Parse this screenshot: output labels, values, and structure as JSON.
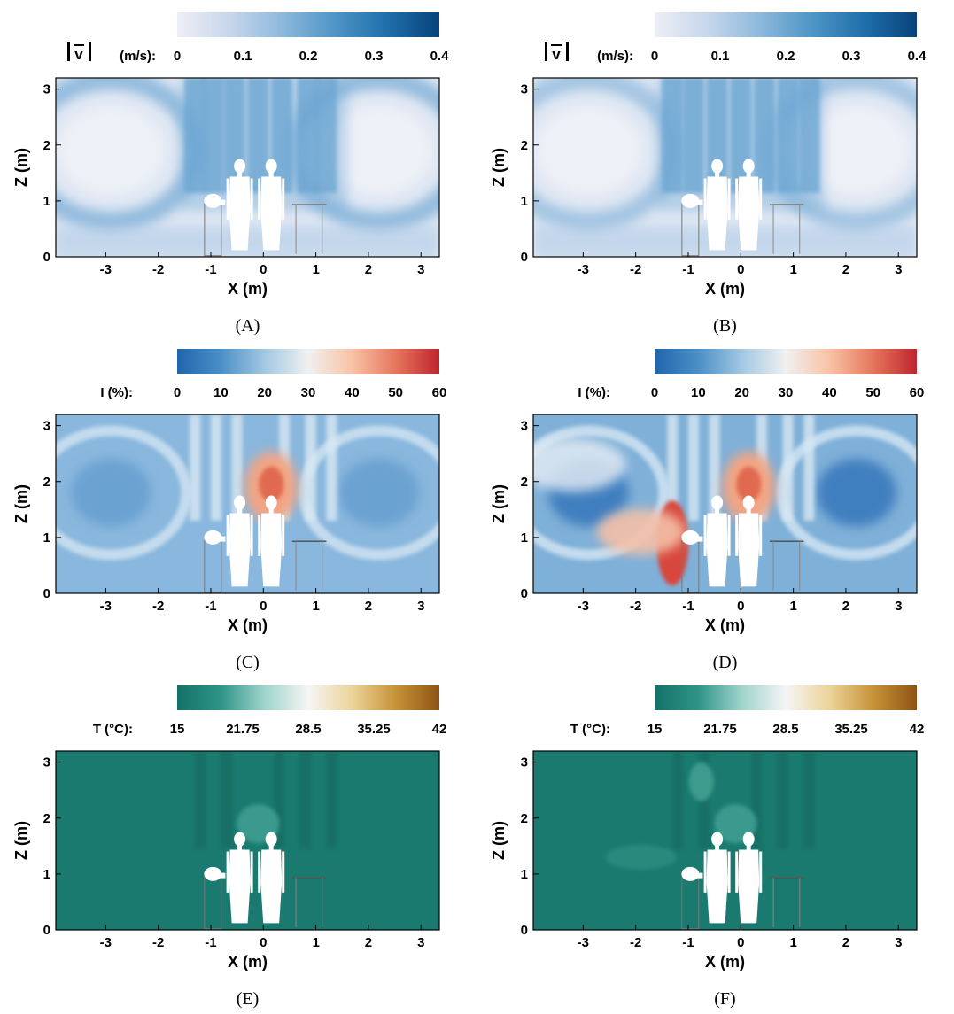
{
  "chart_data": [
    {
      "type": "heatmap",
      "caption": "(A)",
      "colormap": "velocity",
      "colorbar_label": "(m/s):",
      "colorbar_ticks": [
        "0",
        "0.1",
        "0.2",
        "0.3",
        "0.4"
      ],
      "colorbar_range": [
        0,
        0.4
      ],
      "xlabel": "X (m)",
      "ylabel": "Z (m)",
      "xticks": [
        "-3",
        "-2",
        "-1",
        "0",
        "1",
        "2",
        "3"
      ],
      "yticks": [
        "0",
        "1",
        "2",
        "3"
      ],
      "xlim": [
        -3.95,
        3.35
      ],
      "ylim": [
        0,
        3.2
      ]
    },
    {
      "type": "heatmap",
      "caption": "(B)",
      "colormap": "velocity",
      "colorbar_label": "(m/s):",
      "colorbar_ticks": [
        "0",
        "0.1",
        "0.2",
        "0.3",
        "0.4"
      ],
      "colorbar_range": [
        0,
        0.4
      ],
      "xlabel": "X (m)",
      "ylabel": "Z (m)",
      "xticks": [
        "-3",
        "-2",
        "-1",
        "0",
        "1",
        "2",
        "3"
      ],
      "yticks": [
        "0",
        "1",
        "2",
        "3"
      ],
      "xlim": [
        -3.95,
        3.35
      ],
      "ylim": [
        0,
        3.2
      ]
    },
    {
      "type": "heatmap",
      "caption": "(C)",
      "colormap": "intensity",
      "colorbar_label": "I (%):",
      "colorbar_ticks": [
        "0",
        "10",
        "20",
        "30",
        "40",
        "50",
        "60"
      ],
      "colorbar_range": [
        0,
        60
      ],
      "xlabel": "X (m)",
      "ylabel": "Z (m)",
      "xticks": [
        "-3",
        "-2",
        "-1",
        "0",
        "1",
        "2",
        "3"
      ],
      "yticks": [
        "0",
        "1",
        "2",
        "3"
      ],
      "xlim": [
        -3.95,
        3.35
      ],
      "ylim": [
        0,
        3.2
      ]
    },
    {
      "type": "heatmap",
      "caption": "(D)",
      "colormap": "intensity",
      "colorbar_label": "I (%):",
      "colorbar_ticks": [
        "0",
        "10",
        "20",
        "30",
        "40",
        "50",
        "60"
      ],
      "colorbar_range": [
        0,
        60
      ],
      "xlabel": "X (m)",
      "ylabel": "Z (m)",
      "xticks": [
        "-3",
        "-2",
        "-1",
        "0",
        "1",
        "2",
        "3"
      ],
      "yticks": [
        "0",
        "1",
        "2",
        "3"
      ],
      "xlim": [
        -3.95,
        3.35
      ],
      "ylim": [
        0,
        3.2
      ]
    },
    {
      "type": "heatmap",
      "caption": "(E)",
      "colormap": "temperature",
      "colorbar_label": "T (°C):",
      "colorbar_ticks": [
        "15",
        "21.75",
        "28.5",
        "35.25",
        "42"
      ],
      "colorbar_range": [
        15,
        42
      ],
      "xlabel": "X (m)",
      "ylabel": "Z (m)",
      "xticks": [
        "-3",
        "-2",
        "-1",
        "0",
        "1",
        "2",
        "3"
      ],
      "yticks": [
        "0",
        "1",
        "2",
        "3"
      ],
      "xlim": [
        -3.95,
        3.35
      ],
      "ylim": [
        0,
        3.2
      ]
    },
    {
      "type": "heatmap",
      "caption": "(F)",
      "colormap": "temperature",
      "colorbar_label": "T (°C):",
      "colorbar_ticks": [
        "15",
        "21.75",
        "28.5",
        "35.25",
        "42"
      ],
      "colorbar_range": [
        15,
        42
      ],
      "xlabel": "X (m)",
      "ylabel": "Z (m)",
      "xticks": [
        "-3",
        "-2",
        "-1",
        "0",
        "1",
        "2",
        "3"
      ],
      "yticks": [
        "0",
        "1",
        "2",
        "3"
      ],
      "xlim": [
        -3.95,
        3.35
      ],
      "ylim": [
        0,
        3.2
      ]
    }
  ],
  "colormaps": {
    "velocity": [
      "#eeeef6",
      "#c7d7ec",
      "#8db9dc",
      "#4f95c6",
      "#1f6fab",
      "#08437a"
    ],
    "intensity": [
      "#2166ac",
      "#4b8fc7",
      "#a3c8e3",
      "#f0f0f0",
      "#f9c3a6",
      "#e5765c",
      "#c0242e"
    ],
    "temperature": [
      "#137268",
      "#2f9487",
      "#9fd4cc",
      "#f5f5f5",
      "#ecd49a",
      "#c79338",
      "#8e5314"
    ]
  }
}
